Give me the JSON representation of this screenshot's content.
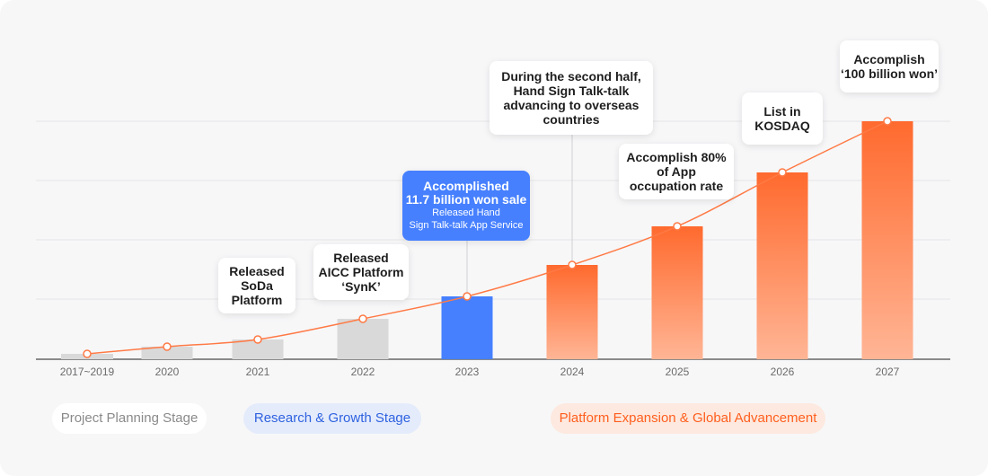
{
  "chart_data": {
    "type": "bar",
    "categories": [
      "2017~2019",
      "2020",
      "2021",
      "2022",
      "2023",
      "2024",
      "2025",
      "2026",
      "2027"
    ],
    "values": [
      6,
      14,
      22,
      45,
      70,
      105,
      148,
      208,
      265
    ],
    "ylim": [
      0,
      265
    ],
    "grid": true,
    "trend_line": true,
    "bar_colors": {
      "past": "#d9d9d9",
      "current": "#4680ff",
      "forecast_top": "#ff6a2e",
      "forecast_bottom": "#ffb595"
    },
    "annotations": [
      {
        "category": "2021",
        "lines": [
          "Released",
          "SoDa",
          "Platform"
        ]
      },
      {
        "category": "2022",
        "lines": [
          "Released",
          "AICC Platform",
          "‘SynK’"
        ]
      },
      {
        "category": "2023",
        "main": [
          "Accomplished",
          "11.7 billion won sale"
        ],
        "sub": [
          "Released Hand",
          "Sign Talk-talk App Service"
        ]
      },
      {
        "category": "2024",
        "lines": [
          "During the second half,",
          "Hand Sign Talk-talk",
          "advancing to overseas",
          "countries"
        ]
      },
      {
        "category": "2025",
        "lines": [
          "Accomplish 80%",
          "of App",
          "occupation rate"
        ]
      },
      {
        "category": "2026",
        "lines": [
          "List in",
          "KOSDAQ"
        ]
      },
      {
        "category": "2027",
        "lines": [
          "Accomplish",
          "‘100 billion won’"
        ]
      }
    ]
  },
  "stages": [
    {
      "label": "Project Planning Stage",
      "bg": "#ffffff",
      "color": "#8a8a8a"
    },
    {
      "label": "Research & Growth Stage",
      "bg": "#e4ebfb",
      "color": "#2f63e0"
    },
    {
      "label": "Platform Expansion & Global Advancement",
      "bg": "#fde9df",
      "color": "#ff5f1f"
    }
  ]
}
